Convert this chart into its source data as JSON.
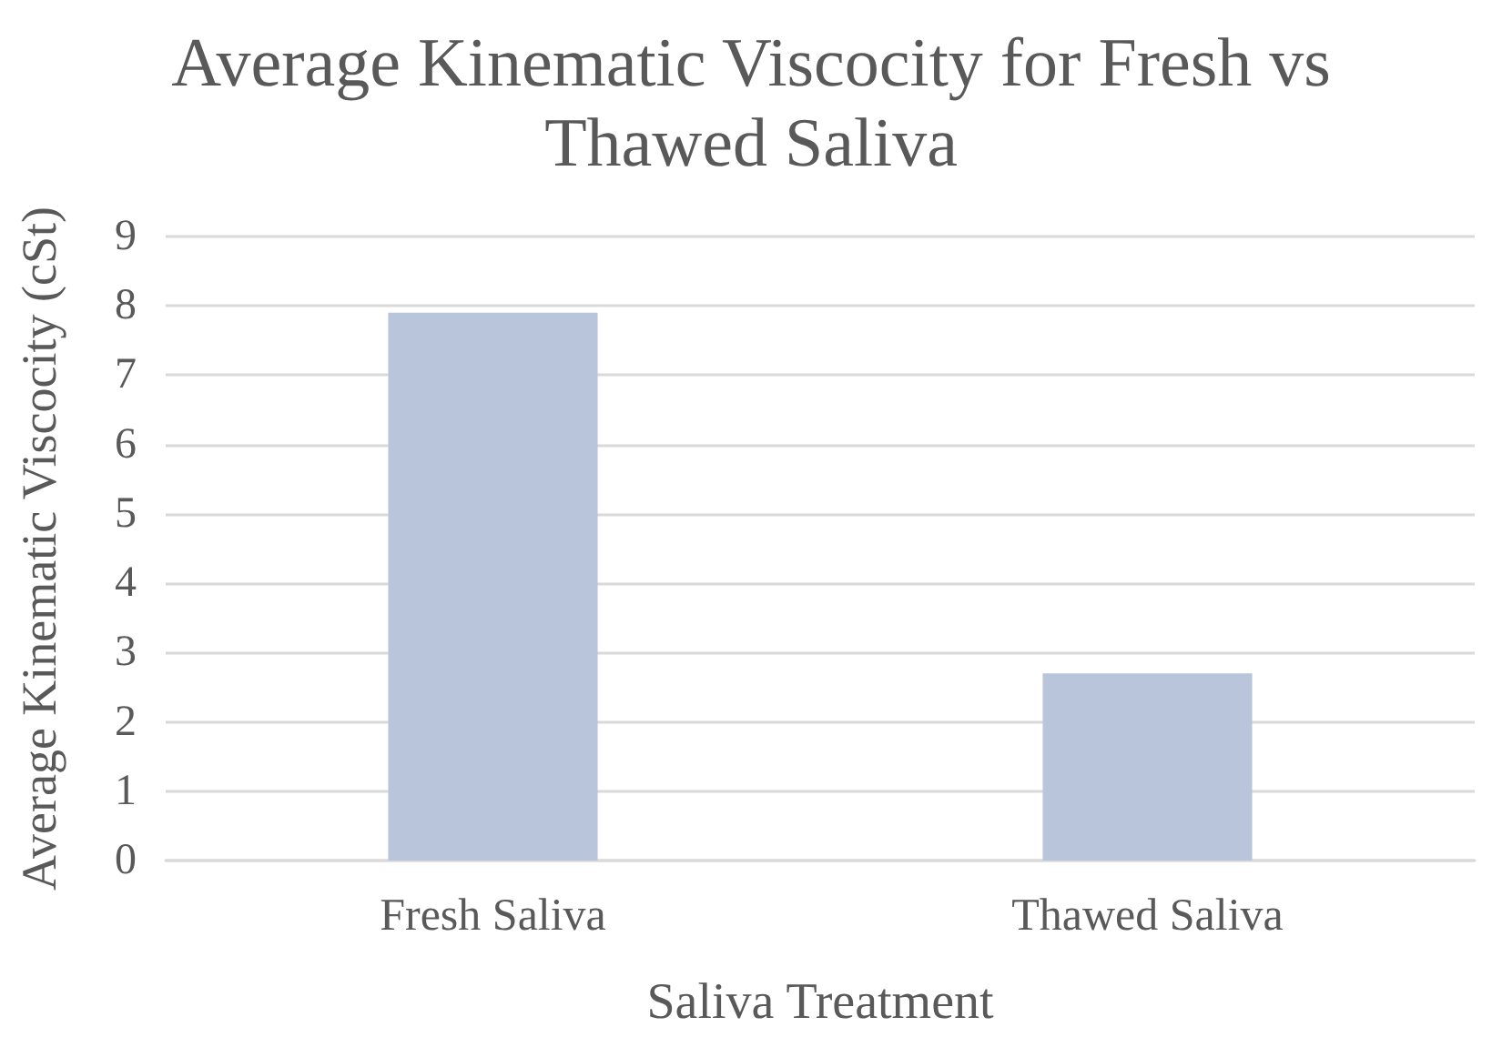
{
  "chart_data": {
    "type": "bar",
    "title": "Average Kinematic Viscocity for Fresh vs\nThawed Saliva",
    "xlabel": "Saliva Treatment",
    "ylabel": "Average Kinematic Viscocity (cSt)",
    "categories": [
      "Fresh Saliva",
      "Thawed Saliva"
    ],
    "values": [
      7.9,
      2.7
    ],
    "color": "#b9c5da",
    "ylim": [
      0,
      9
    ],
    "yticks": [
      0,
      1,
      2,
      3,
      4,
      5,
      6,
      7,
      8,
      9
    ],
    "grid": "y"
  }
}
